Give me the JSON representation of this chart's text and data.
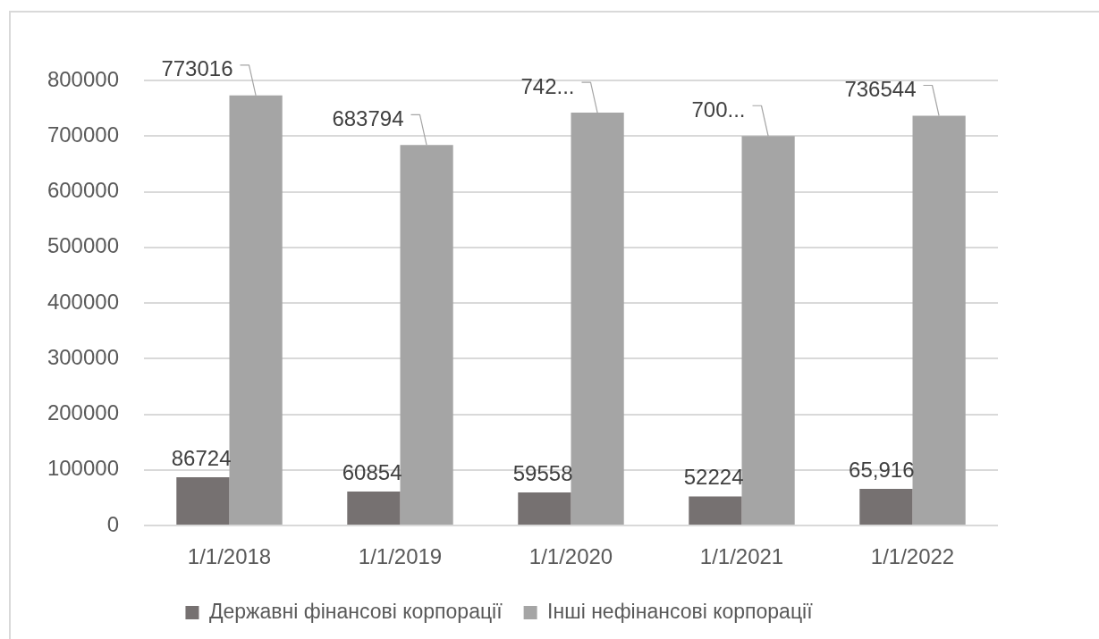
{
  "chart_data": {
    "type": "bar",
    "categories": [
      "1/1/2018",
      "1/1/2019",
      "1/1/2020",
      "1/1/2021",
      "1/1/2022"
    ],
    "series": [
      {
        "name": "Державні фінансові корпорації",
        "color": "#767171",
        "values": [
          86724,
          60854,
          59558,
          52224,
          65916
        ],
        "value_labels": [
          "86724",
          "60854",
          "59558",
          "52224",
          "65,916"
        ]
      },
      {
        "name": "Інші нефінансові корпорації",
        "color": "#a5a5a5",
        "values": [
          773016,
          683794,
          742000,
          700000,
          736544
        ],
        "value_labels": [
          "773016",
          "683794",
          "742...",
          "700...",
          "736544"
        ]
      }
    ],
    "ylim": [
      0,
      800000
    ],
    "yticks": [
      0,
      100000,
      200000,
      300000,
      400000,
      500000,
      600000,
      700000,
      800000
    ],
    "grid": "y",
    "legend": "bottom"
  }
}
